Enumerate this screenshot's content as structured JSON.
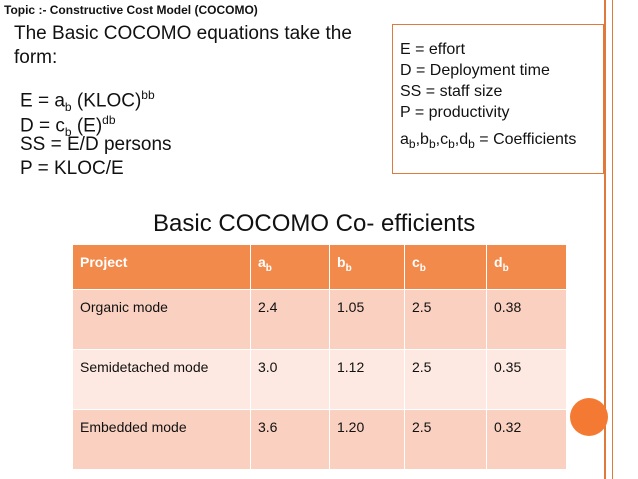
{
  "slide": {
    "topic": "Topic :- Constructive Cost Model (COCOMO)",
    "intro": "The Basic COCOMO equations take the form:",
    "equations": {
      "e": {
        "lhs": "E = a",
        "sub": "b",
        "rhs": " (KLOC)",
        "sup": "bb"
      },
      "d": {
        "lhs": "D = c",
        "sub": "b",
        "rhs": " (E)",
        "sup": "db"
      },
      "ss": "SS = E/D persons",
      "p": "P = KLOC/E"
    },
    "legend": {
      "e": "E = effort",
      "d": "D = Deployment time",
      "ss": "SS = staff size",
      "p": "P = productivity",
      "coef": {
        "a": "a",
        "b": "b",
        "c": "c",
        "d": "d",
        "sub": "b",
        "sep": ",",
        "text": " = Coefficients"
      }
    },
    "table_title": "Basic COCOMO Co- efficients",
    "table": {
      "headers": [
        {
          "main": "Project",
          "sub": ""
        },
        {
          "main": "a",
          "sub": "b"
        },
        {
          "main": "b",
          "sub": "b"
        },
        {
          "main": "c",
          "sub": "b"
        },
        {
          "main": "d",
          "sub": "b"
        }
      ],
      "rows": [
        [
          "Organic mode",
          "2.4",
          "1.05",
          "2.5",
          "0.38"
        ],
        [
          "Semidetached mode",
          "3.0",
          "1.12",
          "2.5",
          "0.35"
        ],
        [
          "Embedded mode",
          "3.6",
          "1.20",
          "2.5",
          "0.32"
        ]
      ]
    }
  },
  "colors": {
    "accent": "#f28a4b",
    "row_odd": "#fad1c0",
    "row_even": "#fde9e1"
  }
}
